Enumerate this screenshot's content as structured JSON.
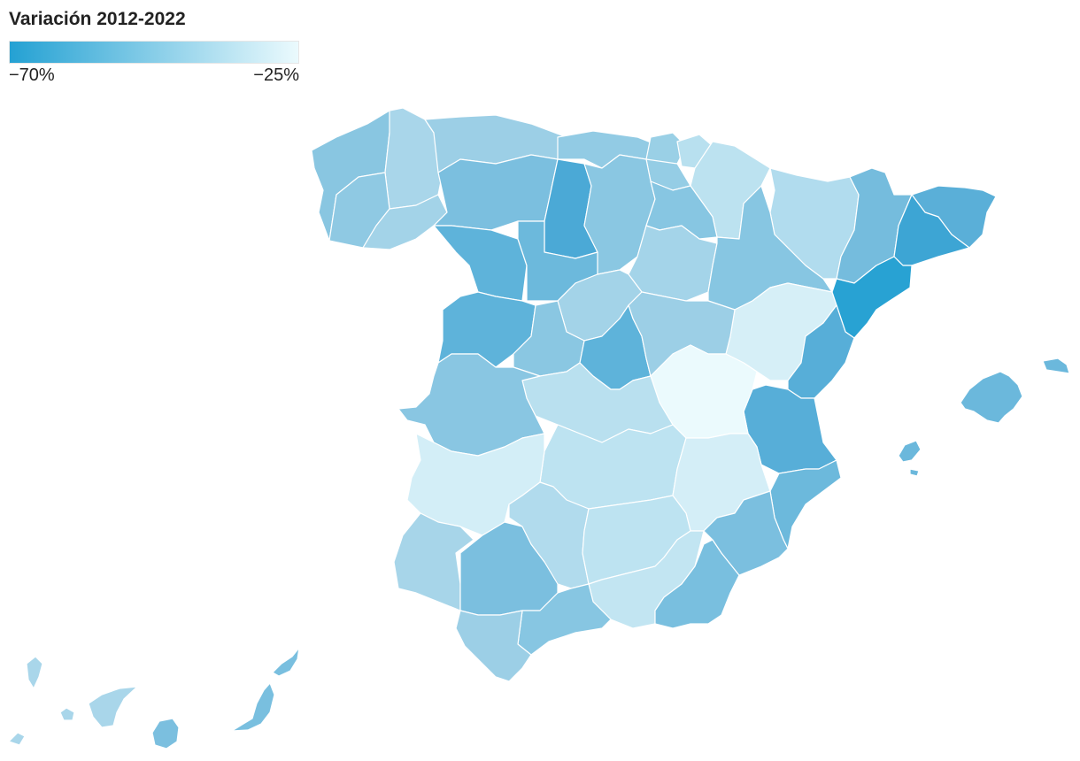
{
  "legend": {
    "title": "Variación 2012-2022",
    "min_label": "−70%",
    "max_label": "−25%",
    "min_value": -70,
    "max_value": -25,
    "color_min": "#24a1d3",
    "color_max": "#ebfafd"
  }
}
